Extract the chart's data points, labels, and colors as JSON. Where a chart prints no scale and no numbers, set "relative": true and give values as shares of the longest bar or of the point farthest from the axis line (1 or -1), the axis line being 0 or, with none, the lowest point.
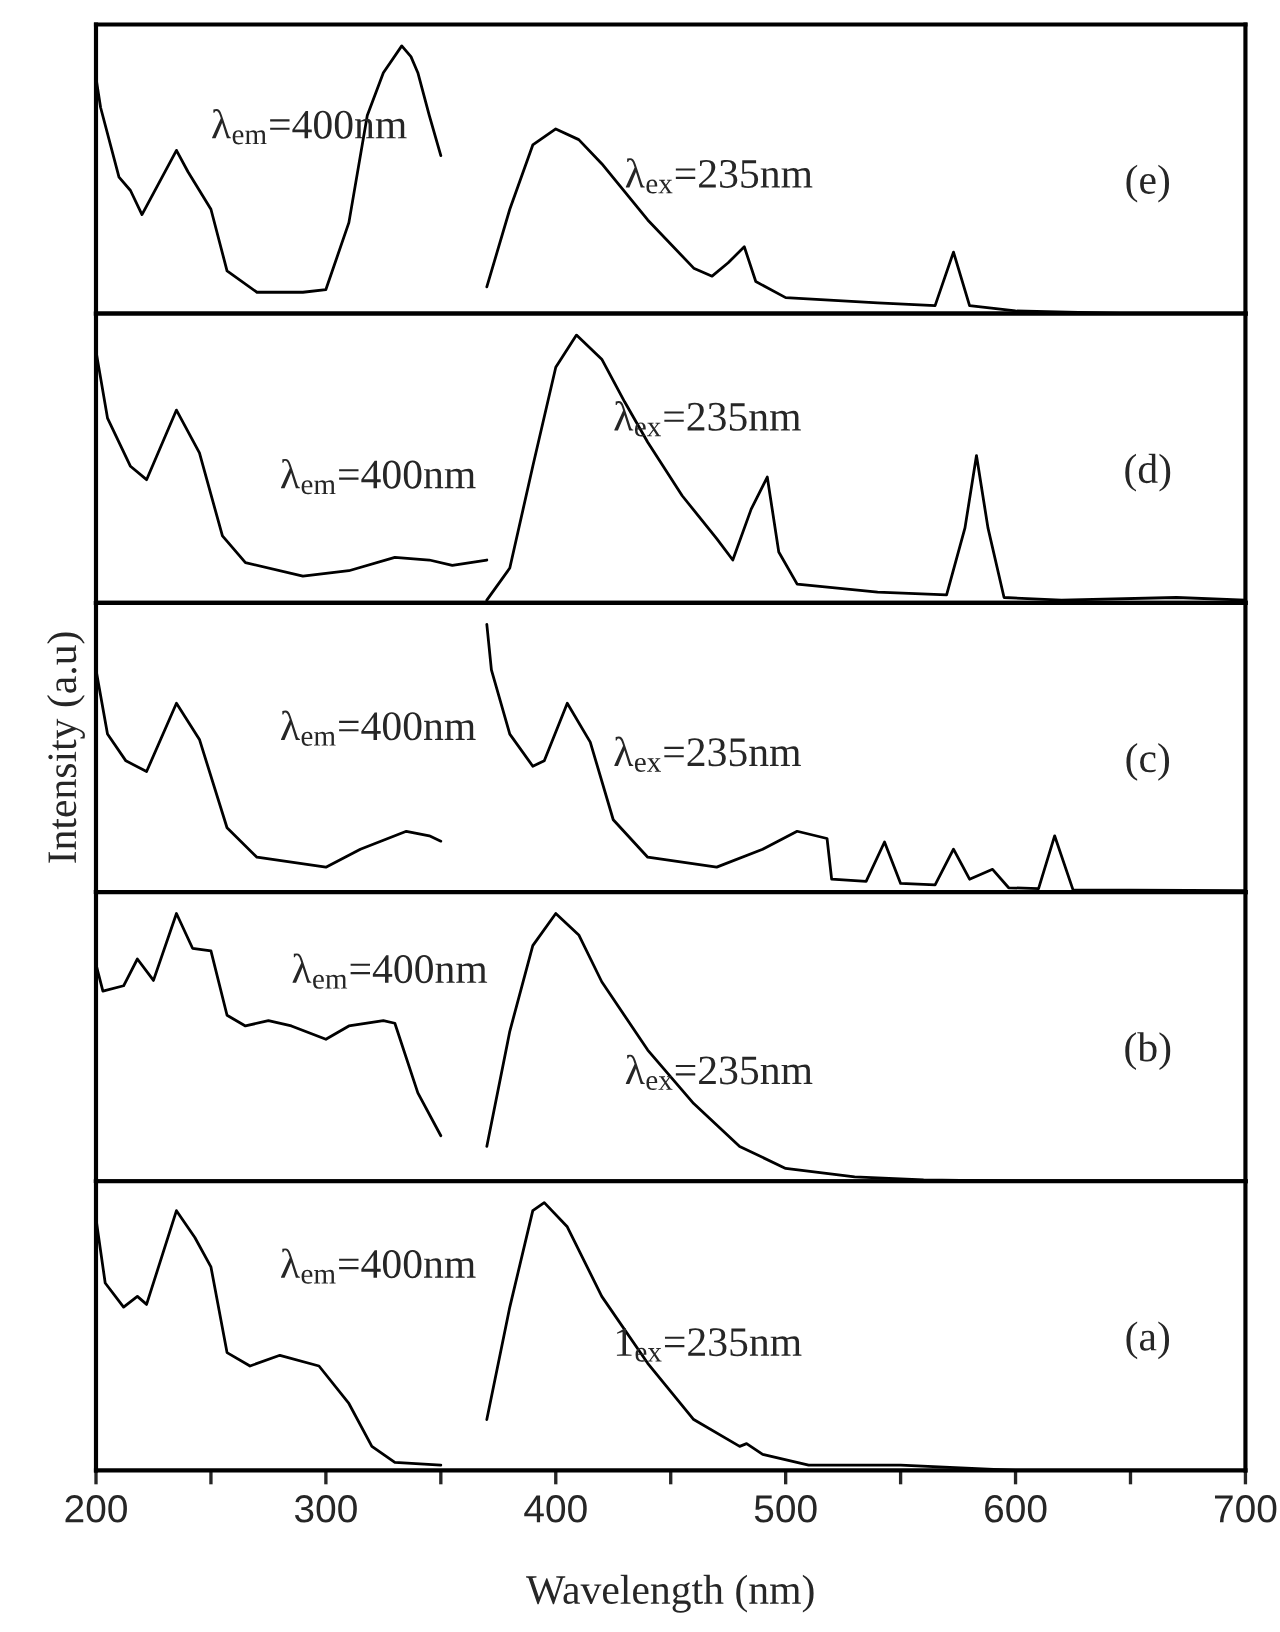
{
  "chart_data": [
    {
      "type": "line",
      "relative": true,
      "xlim": [
        200,
        700
      ],
      "tick_labels": false,
      "marker": "none",
      "line_style": "solid",
      "annotations": [
        "λ$_{em}$=400nm",
        "λ$_{ex}$=235nm",
        "(e)"
      ],
      "series": [
        {
          "color": "#000000",
          "x": [
            200,
            202,
            210,
            215,
            220,
            235,
            240,
            250,
            257,
            270,
            290,
            300,
            310,
            318,
            325,
            333,
            337,
            340,
            345,
            350
          ],
          "values": [
            0.88,
            0.77,
            0.51,
            0.46,
            0.37,
            0.61,
            0.53,
            0.39,
            0.16,
            0.08,
            0.08,
            0.09,
            0.34,
            0.74,
            0.9,
            1.0,
            0.96,
            0.9,
            0.74,
            0.59
          ]
        },
        {
          "color": "#000000",
          "x": [
            370,
            380,
            390,
            400,
            410,
            420,
            440,
            460,
            468,
            475,
            482,
            487,
            500,
            540,
            565,
            573,
            580,
            600,
            650,
            700
          ],
          "values": [
            0.1,
            0.39,
            0.63,
            0.69,
            0.65,
            0.56,
            0.35,
            0.17,
            0.14,
            0.19,
            0.25,
            0.12,
            0.06,
            0.04,
            0.03,
            0.23,
            0.03,
            0.01,
            0.0,
            0.0
          ]
        }
      ]
    },
    {
      "type": "line",
      "relative": true,
      "xlim": [
        200,
        700
      ],
      "tick_labels": false,
      "marker": "none",
      "line_style": "solid",
      "annotations": [
        "λ$_{em}$=400nm",
        "λ$_{ex}$=235nm",
        "(d)"
      ],
      "series": [
        {
          "color": "#000000",
          "x": [
            200,
            205,
            215,
            222,
            235,
            245,
            255,
            265,
            290,
            310,
            330,
            345,
            355,
            370
          ],
          "values": [
            0.94,
            0.69,
            0.51,
            0.46,
            0.72,
            0.56,
            0.25,
            0.15,
            0.1,
            0.12,
            0.17,
            0.16,
            0.14,
            0.16
          ]
        },
        {
          "color": "#000000",
          "x": [
            370,
            380,
            390,
            400,
            409,
            420,
            430,
            440,
            455,
            470,
            477,
            485,
            492,
            497,
            505,
            540,
            570,
            578,
            583,
            588,
            595,
            620,
            670,
            700
          ],
          "values": [
            0.01,
            0.13,
            0.51,
            0.88,
            1.0,
            0.91,
            0.75,
            0.6,
            0.4,
            0.24,
            0.16,
            0.35,
            0.47,
            0.19,
            0.07,
            0.04,
            0.03,
            0.28,
            0.55,
            0.28,
            0.02,
            0.01,
            0.02,
            0.01
          ]
        }
      ]
    },
    {
      "type": "line",
      "relative": true,
      "xlim": [
        200,
        700
      ],
      "tick_labels": false,
      "marker": "none",
      "line_style": "solid",
      "ylabel": "Intensity (a.u)",
      "annotations": [
        "λ$_{em}$=400nm",
        "λ$_{ex}$=235nm",
        "(c)"
      ],
      "series": [
        {
          "color": "#000000",
          "x": [
            200,
            205,
            213,
            222,
            235,
            245,
            257,
            270,
            300,
            315,
            335,
            345,
            350
          ],
          "values": [
            0.83,
            0.59,
            0.49,
            0.45,
            0.705,
            0.57,
            0.24,
            0.13,
            0.093,
            0.16,
            0.227,
            0.21,
            0.19
          ]
        },
        {
          "color": "#000000",
          "x": [
            370,
            372,
            380,
            390,
            395,
            405,
            415,
            425,
            440,
            470,
            490,
            505,
            518,
            520,
            535,
            543,
            550,
            565,
            573,
            580,
            590,
            597,
            610,
            617,
            625,
            700
          ],
          "values": [
            1.0,
            0.83,
            0.59,
            0.47,
            0.49,
            0.705,
            0.56,
            0.27,
            0.13,
            0.093,
            0.16,
            0.227,
            0.2,
            0.048,
            0.04,
            0.187,
            0.032,
            0.027,
            0.16,
            0.048,
            0.085,
            0.016,
            0.013,
            0.21,
            0.008,
            0.005
          ]
        }
      ]
    },
    {
      "type": "line",
      "relative": true,
      "xlim": [
        200,
        700
      ],
      "tick_labels": false,
      "marker": "none",
      "line_style": "solid",
      "annotations": [
        "λ$_{em}$=400nm",
        "λ$_{ex}$=235nm",
        "(b)"
      ],
      "series": [
        {
          "color": "#000000",
          "x": [
            200,
            203,
            212,
            218,
            225,
            235,
            242,
            250,
            257,
            265,
            275,
            285,
            300,
            310,
            325,
            330,
            340,
            350
          ],
          "values": [
            0.81,
            0.71,
            0.73,
            0.83,
            0.75,
            1.0,
            0.87,
            0.86,
            0.62,
            0.58,
            0.6,
            0.58,
            0.53,
            0.58,
            0.6,
            0.59,
            0.33,
            0.17
          ]
        },
        {
          "color": "#000000",
          "x": [
            370,
            380,
            390,
            400,
            410,
            420,
            440,
            460,
            480,
            500,
            530,
            560,
            600,
            700
          ],
          "values": [
            0.13,
            0.56,
            0.88,
            1.0,
            0.92,
            0.745,
            0.49,
            0.29,
            0.13,
            0.048,
            0.016,
            0.005,
            0.0,
            0.0
          ]
        }
      ]
    },
    {
      "type": "line",
      "relative": true,
      "xlim": [
        200,
        700
      ],
      "tick_labels": "x",
      "marker": "none",
      "line_style": "solid",
      "xlabel": "Wavelength (nm)",
      "xticks": [
        200,
        {
          "value": 250,
          "label": null
        },
        300,
        {
          "value": 350,
          "label": null
        },
        400,
        {
          "value": 450,
          "label": null
        },
        500,
        {
          "value": 550,
          "label": null
        },
        600,
        {
          "value": 650,
          "label": null
        },
        700
      ],
      "annotations": [
        "λ$_{em}$=400nm",
        "1$_{ex}$=235nm",
        "(a)"
      ],
      "series": [
        {
          "color": "#000000",
          "x": [
            200,
            204,
            212,
            218,
            222,
            235,
            243,
            250,
            257,
            267,
            280,
            297,
            310,
            320,
            330,
            350
          ],
          "values": [
            0.94,
            0.7,
            0.61,
            0.65,
            0.62,
            0.97,
            0.87,
            0.76,
            0.44,
            0.39,
            0.43,
            0.39,
            0.25,
            0.09,
            0.03,
            0.02
          ]
        },
        {
          "color": "#000000",
          "x": [
            370,
            380,
            390,
            395,
            405,
            420,
            440,
            460,
            480,
            483,
            490,
            510,
            550,
            600,
            700
          ],
          "values": [
            0.19,
            0.61,
            0.97,
            1.0,
            0.91,
            0.65,
            0.4,
            0.19,
            0.09,
            0.1,
            0.06,
            0.02,
            0.02,
            0.0,
            0.0
          ]
        }
      ]
    }
  ]
}
